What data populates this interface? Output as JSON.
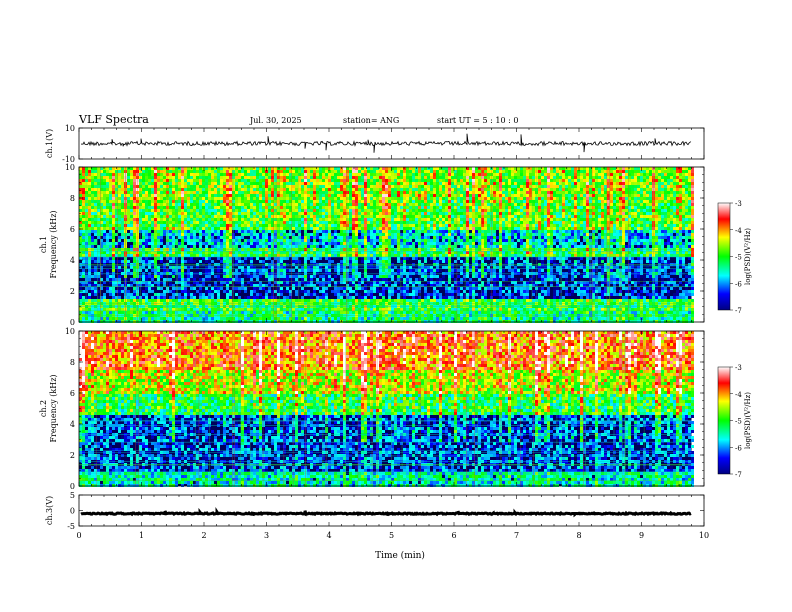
{
  "header": {
    "title": "VLF Spectra",
    "date": "Jul. 30, 2025",
    "station": "station= ANG",
    "start": "start UT =  5 : 10 : 0"
  },
  "chart_data": {
    "type": "heatmap",
    "title": "VLF Spectra",
    "xlabel": "Time (min)",
    "xlim": [
      0,
      10
    ],
    "x_ticks": [
      "0",
      "1",
      "2",
      "3",
      "4",
      "5",
      "6",
      "7",
      "8",
      "9",
      "10"
    ],
    "data_end_min": 9.8,
    "panels": [
      {
        "id": "ch1-waveform",
        "type": "line",
        "ylabel": "ch.1(V)",
        "ylim": [
          -10,
          10
        ],
        "y_ticks": [
          "10",
          "-10"
        ],
        "baseline_value": 0
      },
      {
        "id": "ch1-spectrogram",
        "type": "heatmap",
        "ylabel": "ch.1 Frequency (kHz)",
        "ylabel_lines": [
          "ch.1",
          "Frequency (kHz)"
        ],
        "ylim": [
          0,
          10
        ],
        "y_ticks": [
          "0",
          "2",
          "4",
          "6",
          "8",
          "10"
        ],
        "bands_khz": [
          {
            "from": 0,
            "to": 0.8,
            "level": -5.4
          },
          {
            "from": 0.8,
            "to": 1.6,
            "level": -5.1
          },
          {
            "from": 1.6,
            "to": 4.2,
            "level": -6.4
          },
          {
            "from": 4.2,
            "to": 4.9,
            "level": -5.2
          },
          {
            "from": 4.9,
            "to": 6.0,
            "level": -5.9
          },
          {
            "from": 6.0,
            "to": 8.0,
            "level": -5.0
          },
          {
            "from": 8.0,
            "to": 10.0,
            "level": -4.8
          }
        ],
        "colorbar": {
          "label": "log(PSD)(V²/Hz)",
          "range": [
            -7,
            -3
          ],
          "ticks": [
            "-3",
            "-4",
            "-5",
            "-6",
            "-7"
          ]
        }
      },
      {
        "id": "ch2-spectrogram",
        "type": "heatmap",
        "ylabel": "ch.2 Frequency (kHz)",
        "ylabel_lines": [
          "ch.2",
          "Frequency (kHz)"
        ],
        "ylim": [
          0,
          10
        ],
        "y_ticks": [
          "0",
          "2",
          "4",
          "6",
          "8",
          "10"
        ],
        "bands_khz": [
          {
            "from": 0,
            "to": 1.0,
            "level": -5.6
          },
          {
            "from": 1.0,
            "to": 4.6,
            "level": -6.3
          },
          {
            "from": 4.6,
            "to": 6.0,
            "level": -5.2
          },
          {
            "from": 6.0,
            "to": 7.5,
            "level": -4.5
          },
          {
            "from": 7.5,
            "to": 10.0,
            "level": -3.9
          }
        ],
        "colorbar": {
          "label": "log(PSD)(V²/Hz)",
          "range": [
            -7,
            -3
          ],
          "ticks": [
            "-3",
            "-4",
            "-5",
            "-6",
            "-7"
          ]
        }
      },
      {
        "id": "ch3-waveform",
        "type": "line",
        "ylabel": "ch.3(V)",
        "ylim": [
          -5,
          5
        ],
        "y_ticks": [
          "5",
          "0",
          "-5"
        ],
        "baseline_value": -1
      }
    ]
  }
}
